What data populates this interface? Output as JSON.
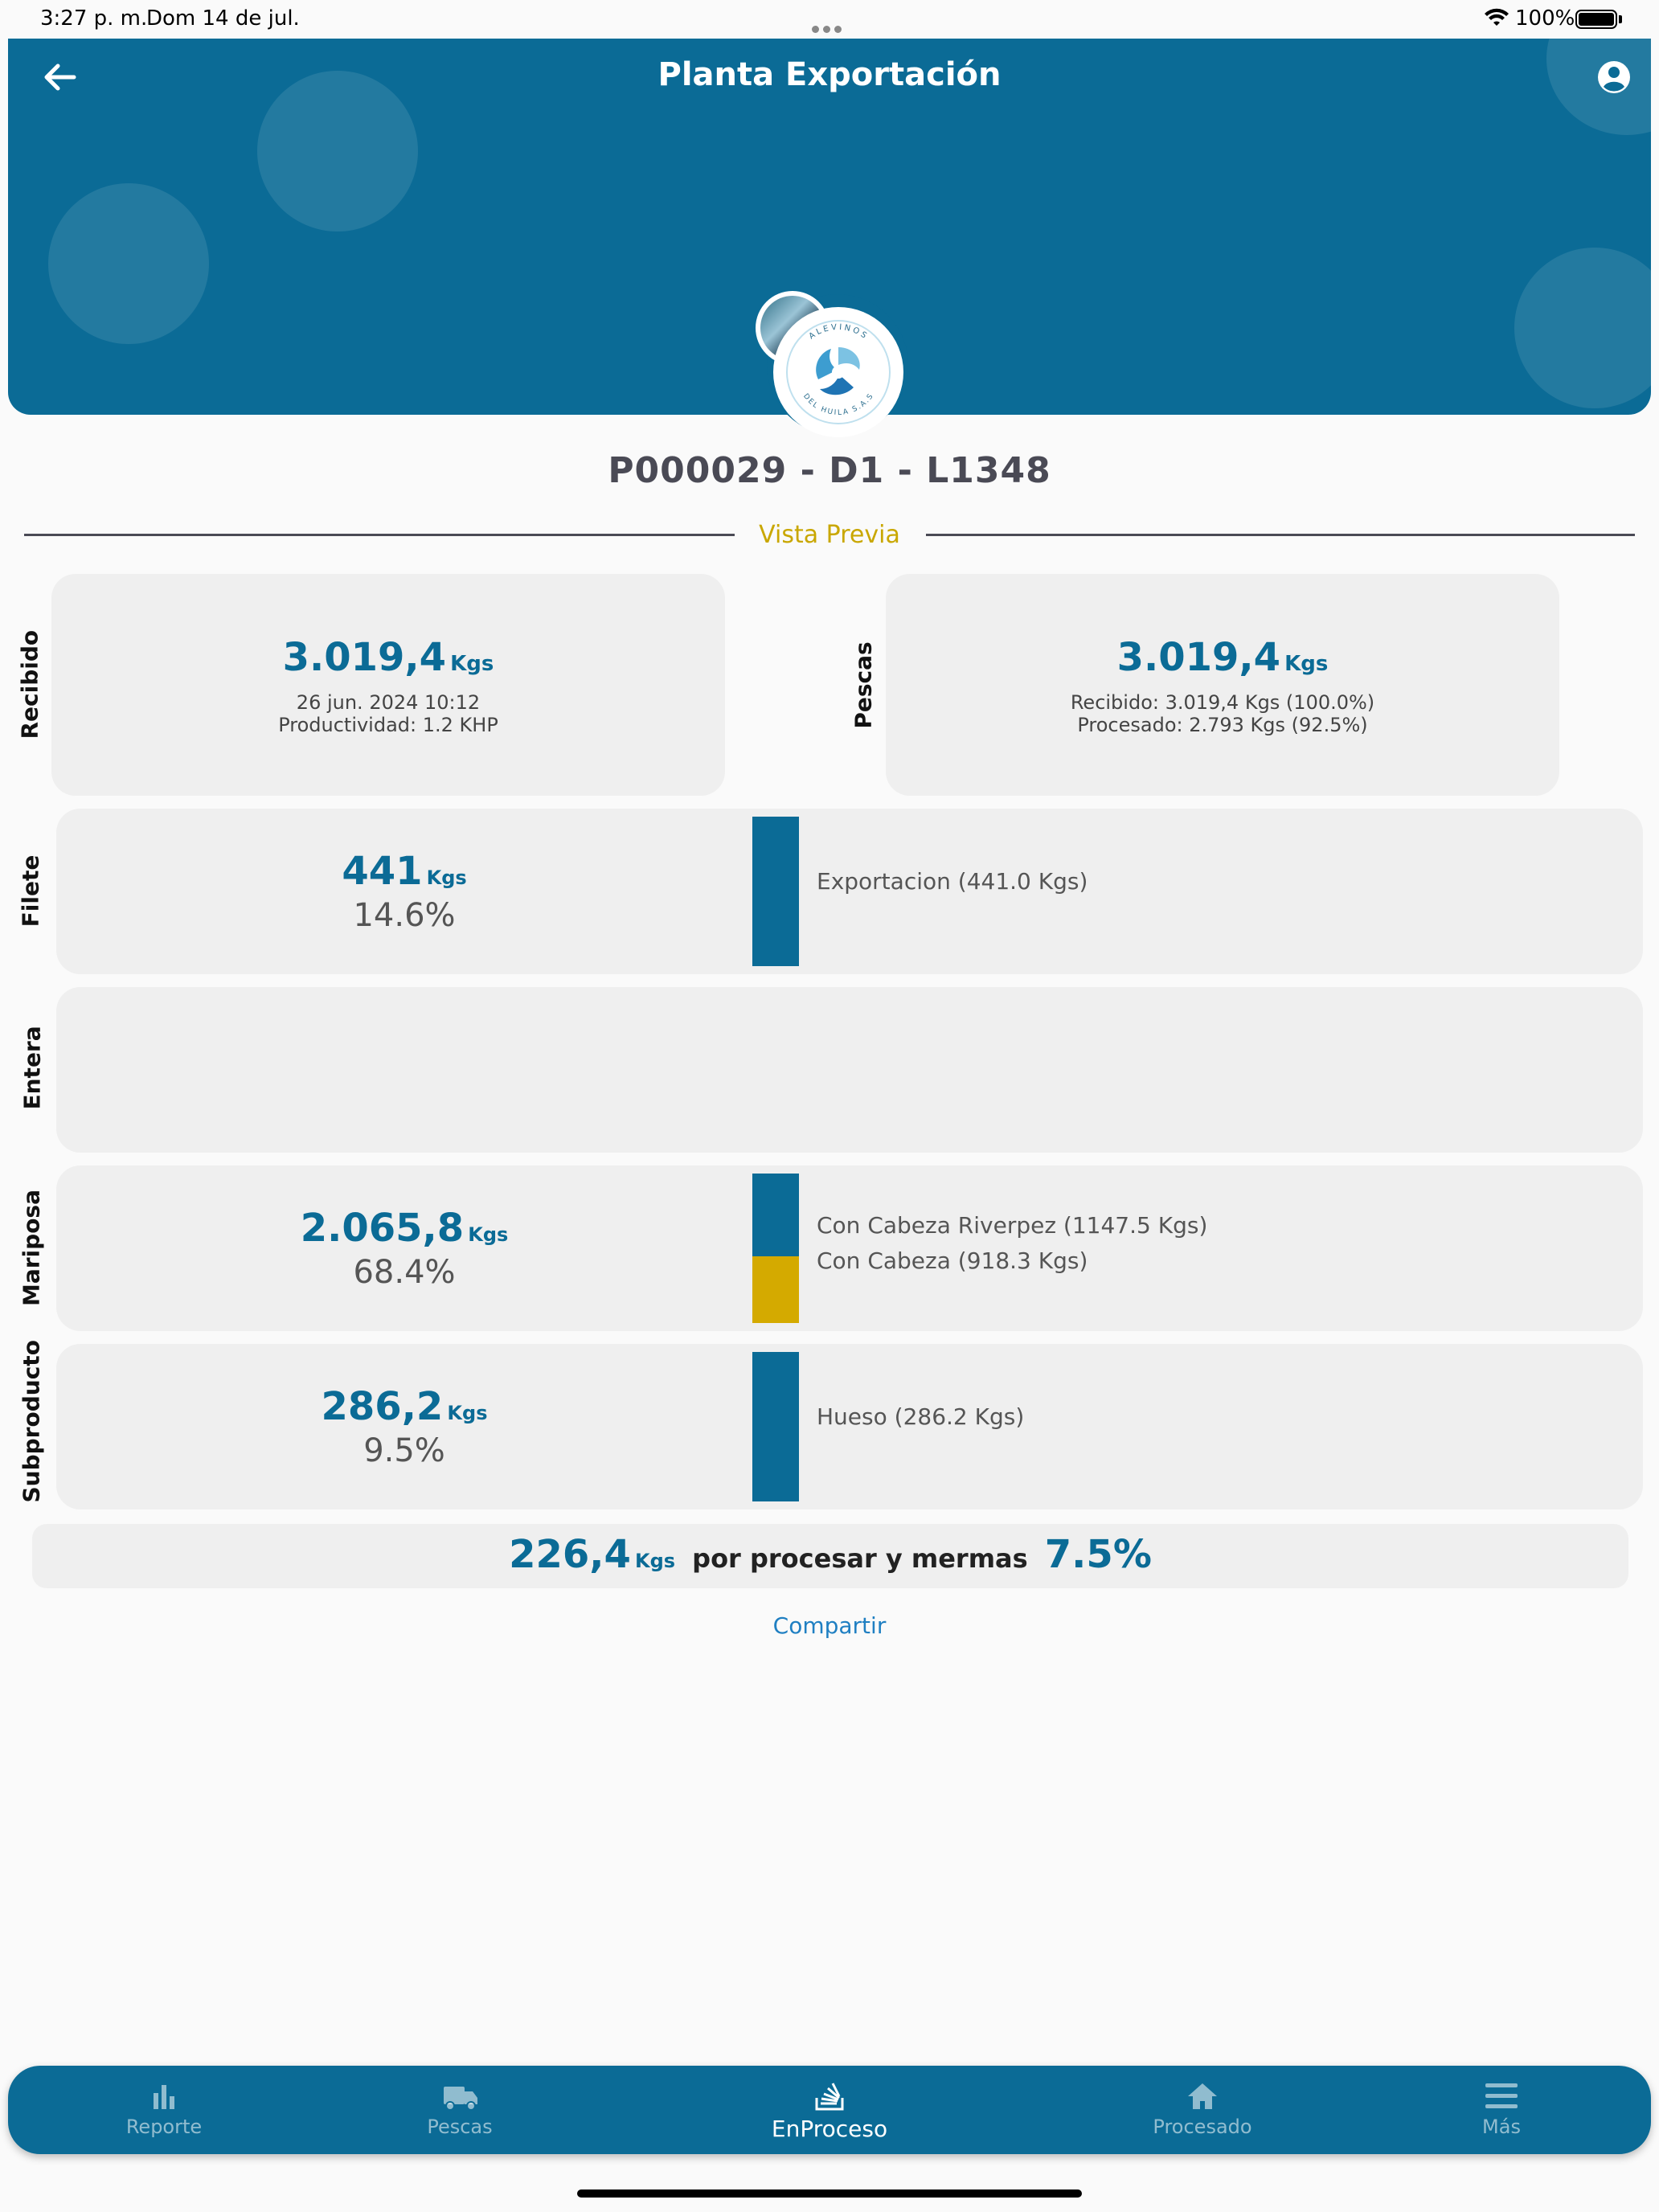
{
  "status_bar": {
    "time": "3:27 p. m.",
    "date": "Dom 14 de jul.",
    "battery": "100%"
  },
  "header": {
    "title": "Planta Exportación",
    "back_icon": "arrow-left-icon",
    "profile_icon": "account-circle-icon",
    "logo_text_top": "ALEVINOS",
    "logo_text_bottom": "DEL HUILA S.A.S"
  },
  "batch": {
    "code": "P000029 - D1 - L1348",
    "preview_label": "Vista Previa"
  },
  "recibido": {
    "label": "Recibido",
    "value": "3.019,4",
    "unit": "Kgs",
    "date": "26 jun. 2024  10:12",
    "productividad": "Productividad: 1.2 KHP"
  },
  "pescas": {
    "label": "Pescas",
    "value": "3.019,4",
    "unit": "Kgs",
    "recibido": "Recibido: 3.019,4 Kgs (100.0%)",
    "procesado": "Procesado: 2.793 Kgs (92.5%)"
  },
  "categories": [
    {
      "label": "Filete",
      "value": "441",
      "unit": "Kgs",
      "percent": "14.6%",
      "segments": [
        {
          "name": "Exportacion (441.0 Kgs)",
          "kgs": 441.0,
          "color": "#0b6b96"
        }
      ]
    },
    {
      "label": "Entera",
      "value": "",
      "unit": "",
      "percent": "",
      "segments": []
    },
    {
      "label": "Mariposa",
      "value": "2.065,8",
      "unit": "Kgs",
      "percent": "68.4%",
      "segments": [
        {
          "name": "Con Cabeza Riverpez (1147.5 Kgs)",
          "kgs": 1147.5,
          "color": "#0b6b96"
        },
        {
          "name": "Con Cabeza (918.3 Kgs)",
          "kgs": 918.3,
          "color": "#d4aa00"
        }
      ]
    },
    {
      "label": "Subproducto",
      "value": "286,2",
      "unit": "Kgs",
      "percent": "9.5%",
      "segments": [
        {
          "name": "Hueso (286.2 Kgs)",
          "kgs": 286.2,
          "color": "#0b6b96"
        }
      ]
    }
  ],
  "summary": {
    "value": "226,4",
    "unit": "Kgs",
    "text": "por procesar y mermas",
    "percent": "7.5%"
  },
  "share_label": "Compartir",
  "tabs": [
    {
      "label": "Reporte",
      "icon": "bar-chart-icon",
      "active": false
    },
    {
      "label": "Pescas",
      "icon": "truck-icon",
      "active": false
    },
    {
      "label": "EnProceso",
      "icon": "stack-process-icon",
      "active": true
    },
    {
      "label": "Procesado",
      "icon": "home-icon",
      "active": false
    },
    {
      "label": "Más",
      "icon": "menu-icon",
      "active": false
    }
  ],
  "colors": {
    "primary": "#0b6b96",
    "accent": "#d4aa00",
    "link": "#1f7fc2"
  }
}
